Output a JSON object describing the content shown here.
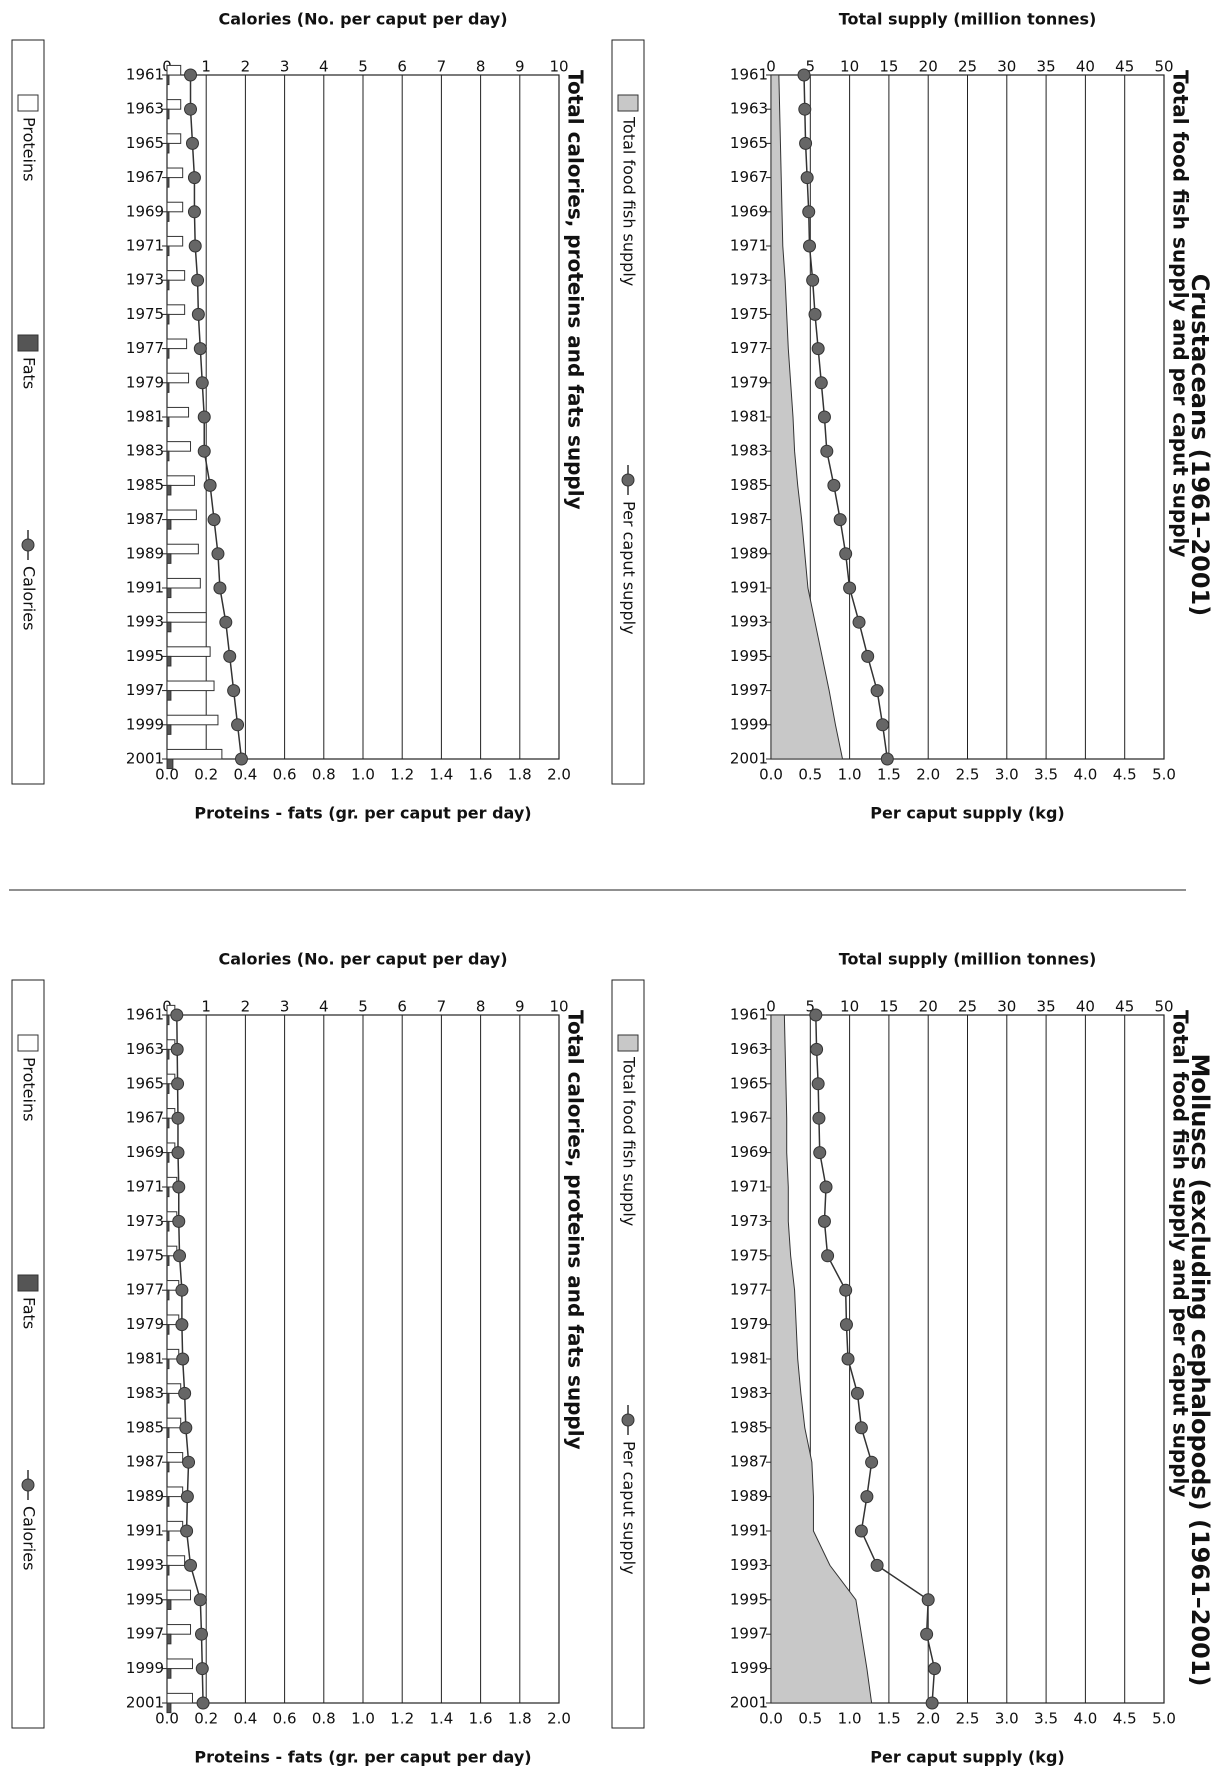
{
  "sections": [
    {
      "title": "Crustaceans (1961–2001)",
      "supply_chart_title": "Total food fish supply and per caput supply",
      "nutrition_chart_title": "Total calories, proteins and fats supply"
    },
    {
      "title": "Molluscs (excluding cephalopods) (1961–2001)",
      "supply_chart_title": "Total food fish supply and per caput supply",
      "nutrition_chart_title": "Total calories, proteins and fats supply"
    }
  ],
  "legends": {
    "supply": [
      "Total food fish supply",
      "Per caput supply"
    ],
    "nutrition": [
      "Proteins",
      "Fats",
      "Calories"
    ]
  },
  "colors": {
    "area_fill": "#c8c8c8",
    "line": "#333333",
    "marker": "#666666",
    "bar_outline": "#333333",
    "fats": "#555555",
    "grid": "#222222"
  },
  "chart_data": [
    {
      "type": "area",
      "panel": "crustaceans-supply",
      "title": "Total food fish supply and per caput supply",
      "categories": [
        "1961",
        "1963",
        "1965",
        "1967",
        "1969",
        "1971",
        "1973",
        "1975",
        "1977",
        "1979",
        "1981",
        "1983",
        "1985",
        "1987",
        "1989",
        "1991",
        "1993",
        "1995",
        "1997",
        "1999",
        "2001"
      ],
      "axes": {
        "category_ticks": [
          "1961",
          "1963",
          "1965",
          "1967",
          "1969",
          "1971",
          "1973",
          "1975",
          "1977",
          "1979",
          "1981",
          "1983",
          "1985",
          "1987",
          "1989",
          "1991",
          "1993",
          "1995",
          "1997",
          "1999",
          "2001"
        ],
        "left_label": "Total supply (million tonnes)",
        "left_range": [
          0,
          50
        ],
        "left_ticks": [
          "0",
          "5",
          "10",
          "15",
          "20",
          "25",
          "30",
          "35",
          "40",
          "45",
          "50"
        ],
        "right_label": "Per caput supply (kg)",
        "right_range": [
          0,
          5
        ],
        "right_ticks": [
          "0.0",
          "0.5",
          "1.0",
          "1.5",
          "2.0",
          "2.5",
          "3.0",
          "3.5",
          "4.0",
          "4.5",
          "5.0"
        ]
      },
      "series": [
        {
          "name": "Total food fish supply",
          "type": "area",
          "axis": "left",
          "values": [
            1.0,
            1.1,
            1.2,
            1.3,
            1.4,
            1.5,
            1.8,
            2.0,
            2.2,
            2.5,
            2.8,
            3.0,
            3.4,
            3.9,
            4.3,
            4.7,
            5.6,
            6.5,
            7.4,
            8.2,
            9.1
          ]
        },
        {
          "name": "Per caput supply",
          "type": "line",
          "axis": "right",
          "values": [
            0.42,
            0.43,
            0.44,
            0.46,
            0.48,
            0.49,
            0.53,
            0.56,
            0.6,
            0.64,
            0.68,
            0.71,
            0.8,
            0.88,
            0.95,
            1.0,
            1.12,
            1.23,
            1.35,
            1.42,
            1.48
          ]
        }
      ]
    },
    {
      "type": "bar",
      "panel": "crustaceans-nutrition",
      "title": "Total calories, proteins and fats supply",
      "categories": [
        "1961",
        "1963",
        "1965",
        "1967",
        "1969",
        "1971",
        "1973",
        "1975",
        "1977",
        "1979",
        "1981",
        "1983",
        "1985",
        "1987",
        "1989",
        "1991",
        "1993",
        "1995",
        "1997",
        "1999",
        "2001"
      ],
      "axes": {
        "category_ticks": [
          "1961",
          "1963",
          "1965",
          "1967",
          "1969",
          "1971",
          "1973",
          "1975",
          "1977",
          "1979",
          "1981",
          "1983",
          "1985",
          "1987",
          "1989",
          "1991",
          "1993",
          "1995",
          "1997",
          "1999",
          "2001"
        ],
        "left_label": "Calories (No. per caput per day)",
        "left_range": [
          0,
          10
        ],
        "left_ticks": [
          "0",
          "1",
          "2",
          "3",
          "4",
          "5",
          "6",
          "7",
          "8",
          "9",
          "10"
        ],
        "right_label": "Proteins - fats (gr. per caput per day)",
        "right_range": [
          0,
          2
        ],
        "right_ticks": [
          "0.0",
          "0.2",
          "0.4",
          "0.6",
          "0.8",
          "1.0",
          "1.2",
          "1.4",
          "1.6",
          "1.8",
          "2.0"
        ]
      },
      "series": [
        {
          "name": "Proteins",
          "type": "bar",
          "axis": "right",
          "values": [
            0.07,
            0.07,
            0.07,
            0.08,
            0.08,
            0.08,
            0.09,
            0.09,
            0.1,
            0.11,
            0.11,
            0.12,
            0.14,
            0.15,
            0.16,
            0.17,
            0.2,
            0.22,
            0.24,
            0.26,
            0.28
          ]
        },
        {
          "name": "Fats",
          "type": "bar",
          "axis": "right",
          "values": [
            0.01,
            0.01,
            0.01,
            0.01,
            0.01,
            0.01,
            0.01,
            0.01,
            0.01,
            0.01,
            0.01,
            0.01,
            0.02,
            0.02,
            0.02,
            0.02,
            0.02,
            0.02,
            0.02,
            0.02,
            0.03
          ]
        },
        {
          "name": "Calories",
          "type": "line",
          "axis": "left",
          "values": [
            0.6,
            0.6,
            0.65,
            0.7,
            0.7,
            0.72,
            0.78,
            0.8,
            0.85,
            0.9,
            0.95,
            0.95,
            1.1,
            1.2,
            1.3,
            1.35,
            1.5,
            1.6,
            1.7,
            1.8,
            1.9
          ]
        }
      ]
    },
    {
      "type": "area",
      "panel": "molluscs-supply",
      "title": "Total food fish supply and per caput supply",
      "categories": [
        "1961",
        "1963",
        "1965",
        "1967",
        "1969",
        "1971",
        "1973",
        "1975",
        "1977",
        "1979",
        "1981",
        "1983",
        "1985",
        "1987",
        "1989",
        "1991",
        "1993",
        "1995",
        "1997",
        "1999",
        "2001"
      ],
      "axes": {
        "category_ticks": [
          "1961",
          "1963",
          "1965",
          "1967",
          "1969",
          "1971",
          "1973",
          "1975",
          "1977",
          "1979",
          "1981",
          "1983",
          "1985",
          "1987",
          "1989",
          "1991",
          "1993",
          "1995",
          "1997",
          "1999",
          "2001"
        ],
        "left_label": "Total supply (million tonnes)",
        "left_range": [
          0,
          50
        ],
        "left_ticks": [
          "0",
          "5",
          "10",
          "15",
          "20",
          "25",
          "30",
          "35",
          "40",
          "45",
          "50"
        ],
        "right_label": "Per caput supply (kg)",
        "right_range": [
          0,
          5
        ],
        "right_ticks": [
          "0.0",
          "0.5",
          "1.0",
          "1.5",
          "2.0",
          "2.5",
          "3.0",
          "3.5",
          "4.0",
          "4.5",
          "5.0"
        ]
      },
      "series": [
        {
          "name": "Total food fish supply",
          "type": "area",
          "axis": "left",
          "values": [
            1.7,
            1.8,
            1.9,
            2.0,
            2.0,
            2.2,
            2.2,
            2.5,
            3.0,
            3.2,
            3.4,
            3.8,
            4.3,
            5.2,
            5.4,
            5.4,
            7.5,
            10.8,
            11.5,
            12.2,
            12.8
          ]
        },
        {
          "name": "Per caput supply",
          "type": "line",
          "axis": "right",
          "values": [
            0.57,
            0.58,
            0.6,
            0.61,
            0.62,
            0.7,
            0.68,
            0.72,
            0.95,
            0.96,
            0.98,
            1.1,
            1.15,
            1.28,
            1.22,
            1.15,
            1.35,
            2.0,
            1.98,
            2.08,
            2.05
          ]
        }
      ]
    },
    {
      "type": "bar",
      "panel": "molluscs-nutrition",
      "title": "Total calories, proteins and fats supply",
      "categories": [
        "1961",
        "1963",
        "1965",
        "1967",
        "1969",
        "1971",
        "1973",
        "1975",
        "1977",
        "1979",
        "1981",
        "1983",
        "1985",
        "1987",
        "1989",
        "1991",
        "1993",
        "1995",
        "1997",
        "1999",
        "2001"
      ],
      "axes": {
        "category_ticks": [
          "1961",
          "1963",
          "1965",
          "1967",
          "1969",
          "1971",
          "1973",
          "1975",
          "1977",
          "1979",
          "1981",
          "1983",
          "1985",
          "1987",
          "1989",
          "1991",
          "1993",
          "1995",
          "1997",
          "1999",
          "2001"
        ],
        "left_label": "Calories (No. per caput per day)",
        "left_range": [
          0,
          10
        ],
        "left_ticks": [
          "0",
          "1",
          "2",
          "3",
          "4",
          "5",
          "6",
          "7",
          "8",
          "9",
          "10"
        ],
        "right_label": "Proteins - fats (gr. per caput per day)",
        "right_range": [
          0,
          2
        ],
        "right_ticks": [
          "0.0",
          "0.2",
          "0.4",
          "0.6",
          "0.8",
          "1.0",
          "1.2",
          "1.4",
          "1.6",
          "1.8",
          "2.0"
        ]
      },
      "series": [
        {
          "name": "Proteins",
          "type": "bar",
          "axis": "right",
          "values": [
            0.04,
            0.04,
            0.04,
            0.04,
            0.04,
            0.05,
            0.05,
            0.05,
            0.06,
            0.06,
            0.06,
            0.07,
            0.07,
            0.08,
            0.08,
            0.08,
            0.09,
            0.12,
            0.12,
            0.13,
            0.13
          ]
        },
        {
          "name": "Fats",
          "type": "bar",
          "axis": "right",
          "values": [
            0.01,
            0.01,
            0.01,
            0.01,
            0.01,
            0.01,
            0.01,
            0.01,
            0.01,
            0.01,
            0.01,
            0.01,
            0.01,
            0.01,
            0.01,
            0.01,
            0.01,
            0.02,
            0.02,
            0.02,
            0.02
          ]
        },
        {
          "name": "Calories",
          "type": "line",
          "axis": "left",
          "values": [
            0.25,
            0.26,
            0.27,
            0.28,
            0.28,
            0.3,
            0.3,
            0.32,
            0.38,
            0.38,
            0.4,
            0.45,
            0.48,
            0.55,
            0.52,
            0.5,
            0.6,
            0.85,
            0.88,
            0.9,
            0.92
          ]
        }
      ]
    }
  ]
}
